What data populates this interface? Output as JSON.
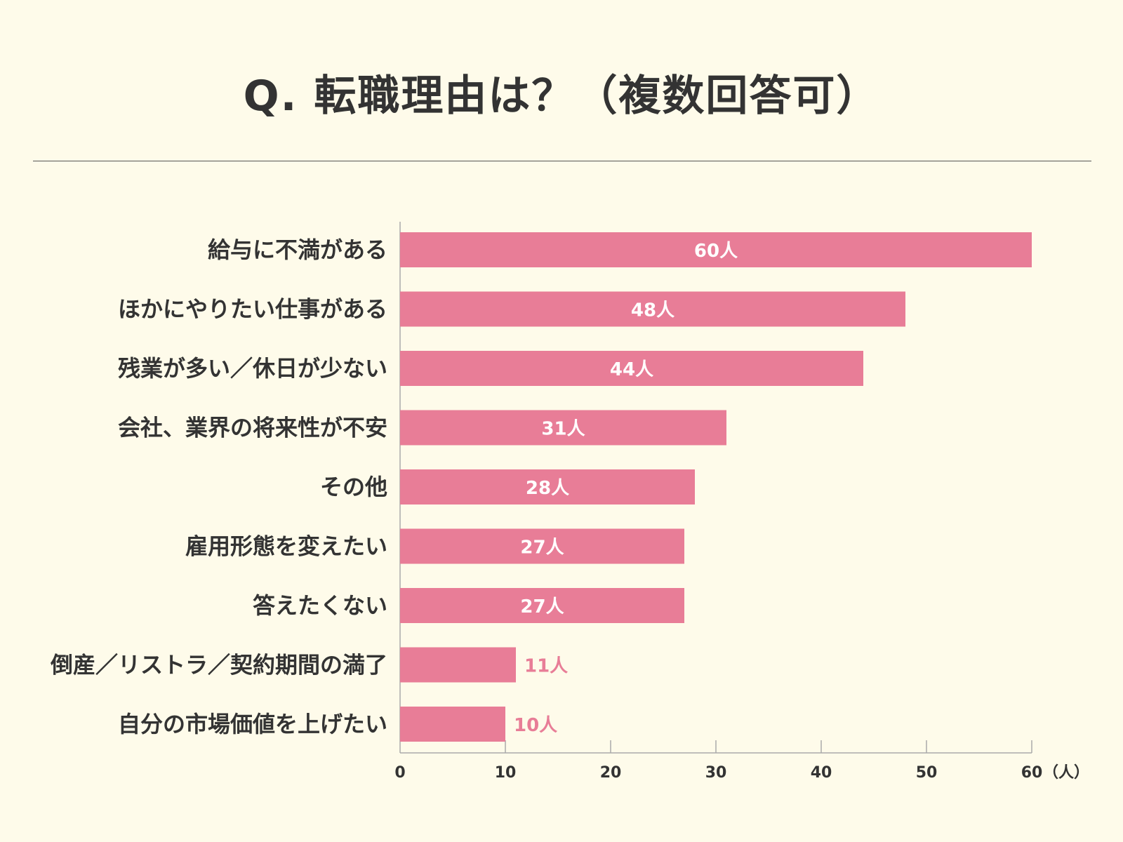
{
  "title": "Q. 転職理由は？（複数回答可）",
  "colors": {
    "bar": "#e87d97",
    "background": "#fefbea",
    "text": "#333333",
    "axis": "#aaaaaa",
    "value_inside": "#ffffff",
    "value_outside": "#e87d97"
  },
  "chart_data": {
    "type": "bar",
    "orientation": "horizontal",
    "categories": [
      "給与に不満がある",
      "ほかにやりたい仕事がある",
      "残業が多い／休日が少ない",
      "会社、業界の将来性が不安",
      "その他",
      "雇用形態を変えたい",
      "答えたくない",
      "倒産／リストラ／契約期間の満了",
      "自分の市場価値を上げたい"
    ],
    "values": [
      60,
      48,
      44,
      31,
      28,
      27,
      27,
      11,
      10
    ],
    "value_labels": [
      "60人",
      "48人",
      "44人",
      "31人",
      "28人",
      "27人",
      "27人",
      "11人",
      "10人"
    ],
    "xlim": [
      0,
      60
    ],
    "xticks": [
      0,
      10,
      20,
      30,
      40,
      50,
      60
    ],
    "tick_labels": [
      "0",
      "10",
      "20",
      "30",
      "40",
      "50",
      "60"
    ],
    "xunit": "（人）",
    "grid": false
  }
}
